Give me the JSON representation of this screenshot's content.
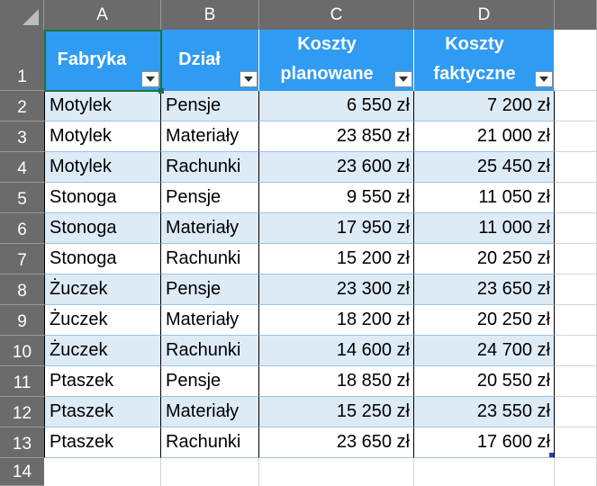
{
  "columns": [
    "A",
    "B",
    "C",
    "D"
  ],
  "rows": [
    "1",
    "2",
    "3",
    "4",
    "5",
    "6",
    "7",
    "8",
    "9",
    "10",
    "11",
    "12",
    "13",
    "14"
  ],
  "table": {
    "headers": {
      "fabryka": "Fabryka",
      "dzial": "Dział",
      "koszty_planowane_1": "Koszty",
      "koszty_planowane_2": "planowane",
      "koszty_faktyczne_1": "Koszty",
      "koszty_faktyczne_2": "faktyczne"
    },
    "data": [
      [
        "Motylek",
        "Pensje",
        "6 550 zł",
        "7 200 zł"
      ],
      [
        "Motylek",
        "Materiały",
        "23 850 zł",
        "21 000 zł"
      ],
      [
        "Motylek",
        "Rachunki",
        "23 600 zł",
        "25 450 zł"
      ],
      [
        "Stonoga",
        "Pensje",
        "9 550 zł",
        "11 050 zł"
      ],
      [
        "Stonoga",
        "Materiały",
        "17 950 zł",
        "11 000 zł"
      ],
      [
        "Stonoga",
        "Rachunki",
        "15 200 zł",
        "20 250 zł"
      ],
      [
        "Żuczek",
        "Pensje",
        "23 300 zł",
        "23 650 zł"
      ],
      [
        "Żuczek",
        "Materiały",
        "18 200 zł",
        "20 250 zł"
      ],
      [
        "Żuczek",
        "Rachunki",
        "14 600 zł",
        "24 700 zł"
      ],
      [
        "Ptaszek",
        "Pensje",
        "18 850 zł",
        "20 550 zł"
      ],
      [
        "Ptaszek",
        "Materiały",
        "15 250 zł",
        "23 550 zł"
      ],
      [
        "Ptaszek",
        "Rachunki",
        "23 650 zł",
        "17 600 zł"
      ]
    ]
  },
  "colors": {
    "header_fill": "#2f9bf2",
    "band_fill": "#ddebf7",
    "sheet_header": "#6b6b6b",
    "selection": "#1e7145"
  },
  "icons": {
    "filter_dropdown": "chevron-down-icon",
    "select_all": "select-all-triangle-icon"
  }
}
